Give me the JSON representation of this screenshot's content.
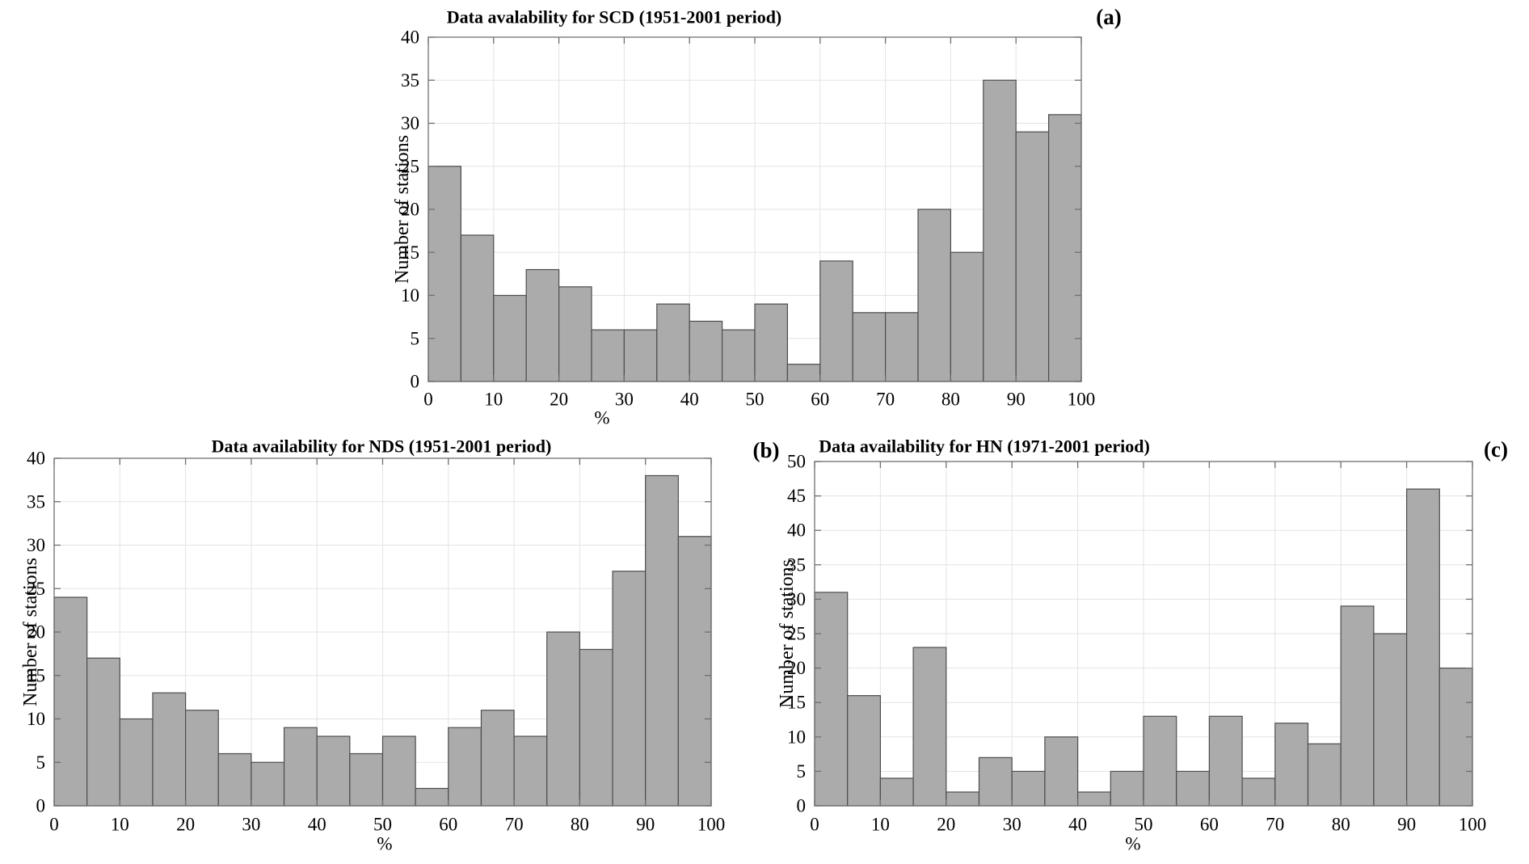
{
  "figure": {
    "background": "#ffffff",
    "description": "Three histogram panels of data availability"
  },
  "style": {
    "bar_fill": "#ababab",
    "bar_edge": "#4d4d4d",
    "grid_color": "#e3e3e3",
    "axis_color": "#6f6f6f",
    "text_color": "#000000"
  },
  "chart_data": [
    {
      "type": "bar",
      "panel_label": "(a)",
      "title": "Data avalability for SCD (1951-2001 period)",
      "xlabel": "%",
      "ylabel": "Number of stations",
      "bin_width": 5,
      "xlim": [
        0,
        100
      ],
      "ylim": [
        0,
        40
      ],
      "grid": true,
      "legend": "none",
      "x_tick_labels": [
        "0",
        "10",
        "20",
        "30",
        "40",
        "50",
        "60",
        "70",
        "80",
        "90",
        "100"
      ],
      "y_tick_labels": [
        "0",
        "5",
        "10",
        "15",
        "20",
        "25",
        "30",
        "35",
        "40"
      ],
      "bin_starts": [
        0,
        5,
        10,
        15,
        20,
        25,
        30,
        35,
        40,
        45,
        50,
        55,
        60,
        65,
        70,
        75,
        80,
        85,
        90,
        95
      ],
      "values": [
        25,
        17,
        10,
        13,
        11,
        6,
        6,
        9,
        7,
        6,
        9,
        2,
        14,
        8,
        8,
        20,
        15,
        35,
        29,
        31
      ]
    },
    {
      "type": "bar",
      "panel_label": "(b)",
      "title": "Data availability for NDS (1951-2001 period)",
      "xlabel": "%",
      "ylabel": "Number of stations",
      "bin_width": 5,
      "xlim": [
        0,
        100
      ],
      "ylim": [
        0,
        40
      ],
      "grid": true,
      "legend": "none",
      "x_tick_labels": [
        "0",
        "10",
        "20",
        "30",
        "40",
        "50",
        "60",
        "70",
        "80",
        "90",
        "100"
      ],
      "y_tick_labels": [
        "0",
        "5",
        "10",
        "15",
        "20",
        "25",
        "30",
        "35",
        "40"
      ],
      "bin_starts": [
        0,
        5,
        10,
        15,
        20,
        25,
        30,
        35,
        40,
        45,
        50,
        55,
        60,
        65,
        70,
        75,
        80,
        85,
        90,
        95
      ],
      "values": [
        24,
        17,
        10,
        13,
        11,
        6,
        5,
        9,
        8,
        6,
        8,
        2,
        9,
        11,
        8,
        20,
        18,
        27,
        38,
        31
      ]
    },
    {
      "type": "bar",
      "panel_label": "(c)",
      "title": "Data availability for HN (1971-2001 period)",
      "xlabel": "%",
      "ylabel": "Number of stations",
      "bin_width": 5,
      "xlim": [
        0,
        100
      ],
      "ylim": [
        0,
        50
      ],
      "grid": true,
      "legend": "none",
      "x_tick_labels": [
        "0",
        "10",
        "20",
        "30",
        "40",
        "50",
        "60",
        "70",
        "80",
        "90",
        "100"
      ],
      "y_tick_labels": [
        "0",
        "5",
        "10",
        "15",
        "20",
        "25",
        "30",
        "35",
        "40",
        "45",
        "50"
      ],
      "bin_starts": [
        0,
        5,
        10,
        15,
        20,
        25,
        30,
        35,
        40,
        45,
        50,
        55,
        60,
        65,
        70,
        75,
        80,
        85,
        90,
        95
      ],
      "values": [
        31,
        16,
        4,
        23,
        2,
        7,
        5,
        10,
        2,
        5,
        13,
        5,
        13,
        4,
        12,
        9,
        29,
        25,
        46,
        20
      ]
    }
  ]
}
